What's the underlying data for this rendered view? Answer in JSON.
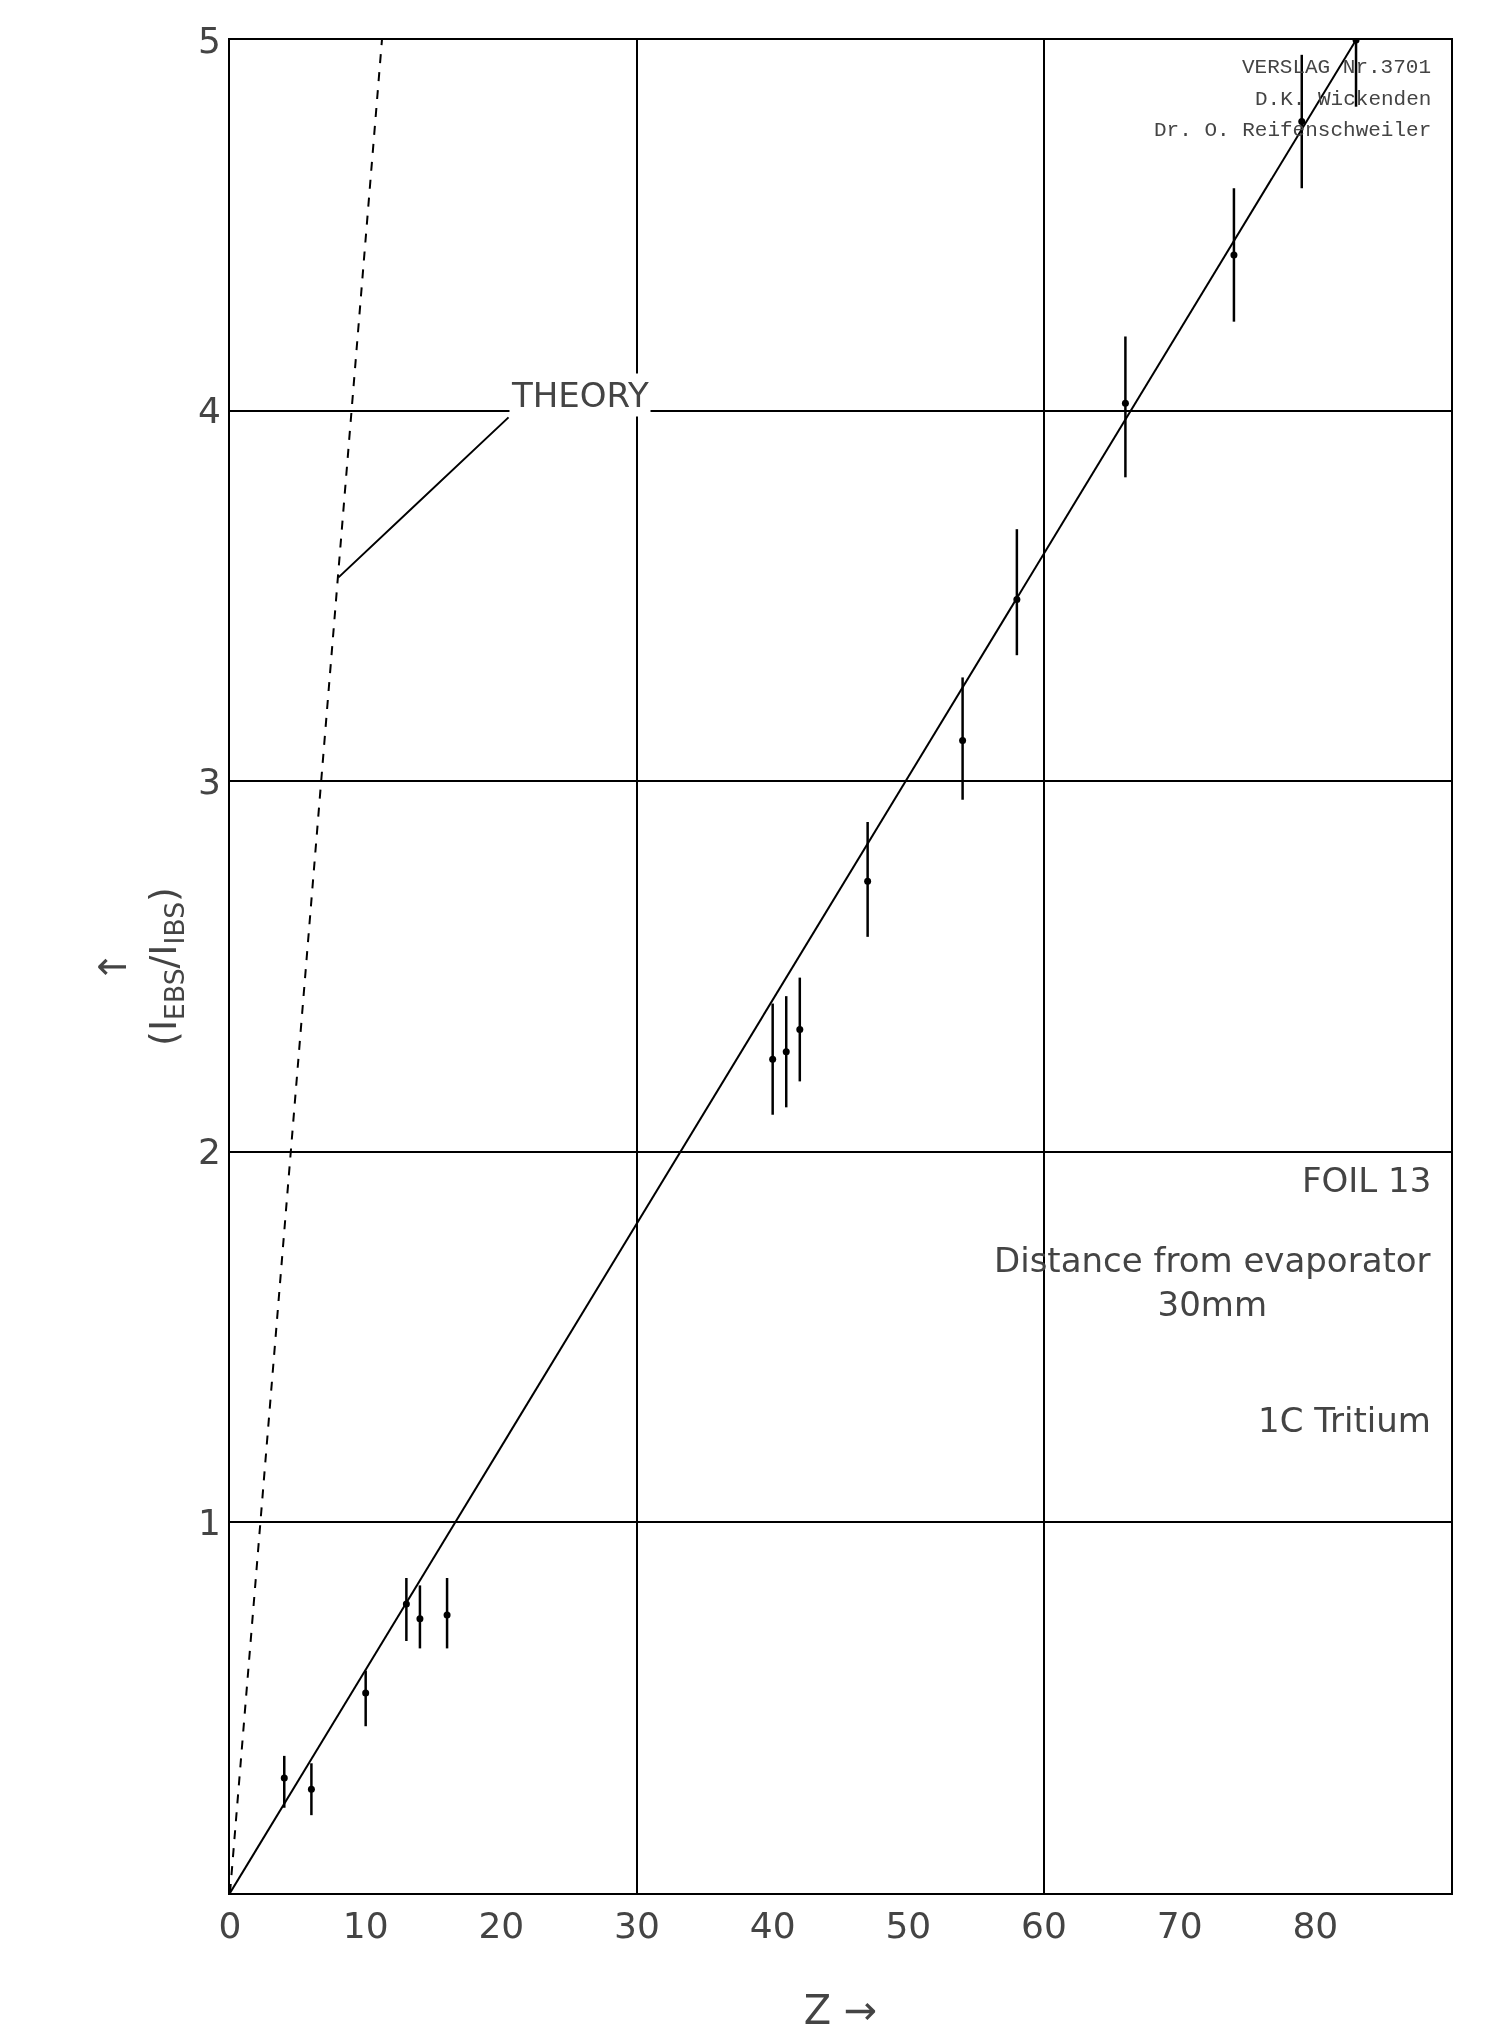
{
  "chart_data": {
    "type": "scatter",
    "xlabel": "Z →",
    "ylabel": "↑\n(I$_{EBS}$/I$_{IBS}$)",
    "xlim": [
      0,
      90
    ],
    "ylim": [
      0,
      5.0
    ],
    "xticks": [
      0,
      10,
      20,
      30,
      40,
      50,
      60,
      70,
      80
    ],
    "yticks": [
      {
        "value": 0,
        "label": null
      },
      1.0,
      2.0,
      3.0,
      4.0,
      5.0
    ],
    "grid": "y",
    "ref_lines": [
      {
        "axis": "x",
        "value": 30,
        "color": "#000000"
      },
      {
        "axis": "x",
        "value": 60,
        "color": "#000000"
      }
    ],
    "series": [
      {
        "marker": "circle",
        "color": "#000000",
        "x": [
          4,
          6,
          10,
          13,
          14,
          16,
          40,
          41,
          42,
          47,
          54,
          58,
          66,
          74,
          79,
          83
        ],
        "values": [
          0.31,
          0.28,
          0.54,
          0.78,
          0.74,
          0.75,
          2.25,
          2.27,
          2.33,
          2.73,
          3.11,
          3.49,
          4.02,
          4.42,
          4.78,
          5.0
        ],
        "errors": [
          [
            0.23,
            0.37
          ],
          [
            0.21,
            0.35
          ],
          [
            0.45,
            0.6
          ],
          [
            0.68,
            0.85
          ],
          [
            0.66,
            0.83
          ],
          [
            0.66,
            0.85
          ],
          [
            2.1,
            2.4
          ],
          [
            2.12,
            2.42
          ],
          [
            2.19,
            2.47
          ],
          [
            2.58,
            2.89
          ],
          [
            2.95,
            3.28
          ],
          [
            3.34,
            3.68
          ],
          [
            3.82,
            4.2
          ],
          [
            4.24,
            4.6
          ],
          [
            4.6,
            4.96
          ],
          [
            4.82,
            5.0
          ]
        ]
      },
      {
        "type": "line",
        "color": "#000000",
        "x": [
          0,
          83
        ],
        "values": [
          0,
          5.0
        ],
        "line_style": "solid"
      },
      {
        "type": "line",
        "color": "#000000",
        "x": [
          0,
          11.2
        ],
        "values": [
          0,
          5.0
        ],
        "line_style": "dashed"
      }
    ],
    "annotations": [
      {
        "text": "THEORY",
        "x": 8,
        "y": 3.55
      },
      "VERSLAG Nr.3701",
      "D.K. Wickenden",
      "Dr. O. Reifenschweiler",
      "FOIL 13",
      "Distance from evaporator\n30mm",
      "1C Tritium"
    ]
  }
}
